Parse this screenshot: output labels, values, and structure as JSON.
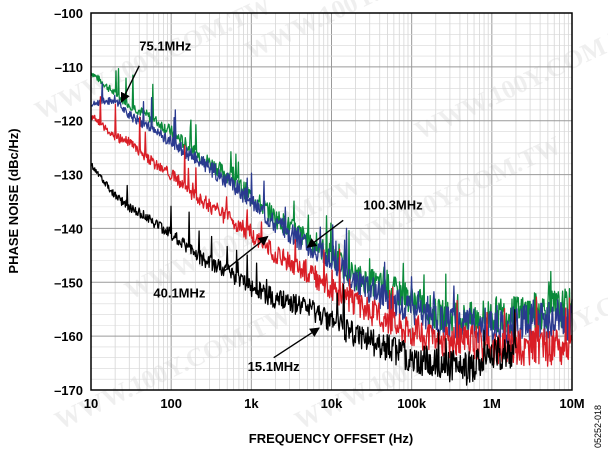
{
  "chart_data": {
    "type": "line",
    "title": "",
    "xlabel": "FREQUENCY OFFSET (Hz)",
    "ylabel": "PHASE NOISE (dBc/Hz)",
    "x_scale": "log",
    "xlim": [
      10,
      10000000
    ],
    "ylim": [
      -170,
      -100
    ],
    "x_ticks": [
      10,
      100,
      1000,
      10000,
      100000,
      1000000,
      10000000
    ],
    "x_tick_labels": [
      "10",
      "100",
      "1k",
      "10k",
      "100k",
      "1M",
      "10M"
    ],
    "y_ticks": [
      -100,
      -110,
      -120,
      -130,
      -140,
      -150,
      -160,
      -170
    ],
    "y_tick_labels": [
      "–100",
      "–110",
      "–120",
      "–130",
      "–140",
      "–150",
      "–160",
      "–170"
    ],
    "grid": true,
    "legend": "none",
    "series": [
      {
        "name": "100.3MHz",
        "color": "#0a8a3a",
        "x": [
          10,
          20,
          30,
          50,
          100,
          200,
          500,
          1000,
          2000,
          5000,
          10000,
          20000,
          50000,
          100000,
          200000,
          500000,
          1000000,
          2000000,
          5000000,
          10000000
        ],
        "y": [
          -111,
          -115,
          -117,
          -119,
          -122,
          -126,
          -130,
          -134,
          -138,
          -142,
          -145,
          -149,
          -151,
          -153,
          -156,
          -157,
          -156,
          -156,
          -155,
          -155
        ]
      },
      {
        "name": "75.1MHz",
        "color": "#2a3a8f",
        "x": [
          10,
          20,
          30,
          50,
          100,
          200,
          500,
          1000,
          2000,
          5000,
          10000,
          20000,
          50000,
          100000,
          200000,
          500000,
          1000000,
          2000000,
          5000000,
          10000000
        ],
        "y": [
          -117,
          -116,
          -119,
          -121,
          -124,
          -127,
          -131,
          -135,
          -139,
          -143,
          -146,
          -150,
          -153,
          -155,
          -157,
          -158,
          -158,
          -158,
          -157,
          -157
        ]
      },
      {
        "name": "40.1MHz",
        "color": "#d91e26",
        "x": [
          10,
          20,
          30,
          50,
          100,
          200,
          500,
          1000,
          2000,
          5000,
          10000,
          20000,
          50000,
          100000,
          200000,
          500000,
          1000000,
          2000000,
          5000000,
          10000000
        ],
        "y": [
          -119,
          -123,
          -124,
          -127,
          -130,
          -134,
          -138,
          -141,
          -145,
          -148,
          -151,
          -154,
          -157,
          -159,
          -161,
          -161,
          -162,
          -162,
          -162,
          -162
        ]
      },
      {
        "name": "15.1MHz",
        "color": "#000000",
        "x": [
          10,
          20,
          30,
          50,
          100,
          200,
          500,
          1000,
          2000,
          5000,
          10000,
          20000,
          50000,
          100000,
          200000,
          500000,
          1000000,
          2000000
        ],
        "y": [
          -128,
          -134,
          -136,
          -138,
          -141,
          -145,
          -148,
          -151,
          -153,
          -155,
          -157,
          -160,
          -162,
          -164,
          -165,
          -166,
          -164,
          -162
        ]
      }
    ],
    "annotations": [
      {
        "text": "75.1MHz"
      },
      {
        "text": "100.3MHz"
      },
      {
        "text": "40.1MHz"
      },
      {
        "text": "15.1MHz"
      }
    ],
    "figure_id": "05252-018",
    "watermark_text": "WWW.100Y.COM.TW"
  }
}
